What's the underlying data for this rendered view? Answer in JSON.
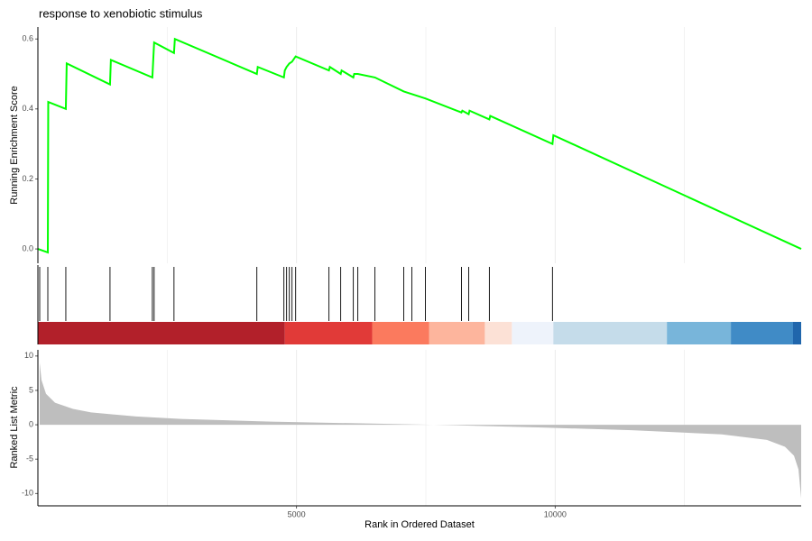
{
  "chart_data": [
    {
      "type": "line",
      "title": "response to xenobiotic stimulus",
      "ylabel": "Running Enrichment Score",
      "color": "#00FF00",
      "ylim": [
        -0.041,
        0.634
      ],
      "yticks": [
        {
          "value": 0,
          "label": "0.0"
        },
        0.2,
        0.4,
        0.6
      ],
      "x": [
        0,
        192,
        200,
        540,
        557,
        1394,
        1411,
        2213,
        2230,
        2247,
        2631,
        2648,
        4233,
        4250,
        4756,
        4773,
        4808,
        4861,
        4913,
        4983,
        5627,
        5644,
        5854,
        5871,
        6098,
        6115,
        6185,
        6516,
        7073,
        7491,
        8188,
        8205,
        8328,
        8345,
        8728,
        8745,
        9948,
        9965,
        14756
      ],
      "values": [
        0,
        -0.01,
        0.42,
        0.4,
        0.53,
        0.47,
        0.54,
        0.49,
        0.54,
        0.59,
        0.56,
        0.6,
        0.5,
        0.52,
        0.49,
        0.51,
        0.52,
        0.53,
        0.535,
        0.55,
        0.51,
        0.52,
        0.5,
        0.51,
        0.49,
        0.5,
        0.5,
        0.49,
        0.45,
        0.43,
        0.39,
        0.395,
        0.385,
        0.395,
        0.37,
        0.38,
        0.3,
        0.325,
        0
      ]
    },
    {
      "type": "rug",
      "color": "#000000",
      "x": [
        35,
        192,
        540,
        1394,
        2213,
        2247,
        2631,
        4233,
        4756,
        4808,
        4861,
        4913,
        4983,
        5627,
        5854,
        6098,
        6185,
        6516,
        7073,
        7230,
        7491,
        8188,
        8328,
        8728,
        9948
      ]
    },
    {
      "type": "band",
      "edges": [
        0,
        4774,
        6463,
        7561,
        8641,
        9164,
        9965,
        12160,
        13397,
        14599,
        14756
      ],
      "colors": [
        "#B2202A",
        "#E13A38",
        "#FB7A5E",
        "#FDB59D",
        "#FCE1D6",
        "#EEF3FB",
        "#C5DCEA",
        "#78B5DA",
        "#408BC6",
        "#2066AC"
      ]
    },
    {
      "type": "area",
      "ylabel": "Ranked List Metric",
      "xlabel": "Rank in Ordered Dataset",
      "color": "#BEBEBE",
      "grid_color": "#EBEBEB",
      "xlim": [
        0,
        14756
      ],
      "xticks": [
        5000,
        10000
      ],
      "x_minor_grid": [
        2500,
        7500,
        12500
      ],
      "ylim": [
        -11.8,
        10.9
      ],
      "yticks": [
        10,
        5,
        0,
        -5,
        -10
      ],
      "x": [
        35,
        70,
        157,
        331,
        679,
        1028,
        1899,
        2770,
        4512,
        6254,
        7648,
        9739,
        11481,
        13223,
        14094,
        14443,
        14617,
        14704,
        14756
      ],
      "values": [
        9,
        6.5,
        4.5,
        3.2,
        2.3,
        1.8,
        1.2,
        0.85,
        0.45,
        0.2,
        0,
        -0.4,
        -0.8,
        -1.4,
        -2.2,
        -3.2,
        -4.5,
        -6.5,
        -10.7
      ]
    }
  ]
}
